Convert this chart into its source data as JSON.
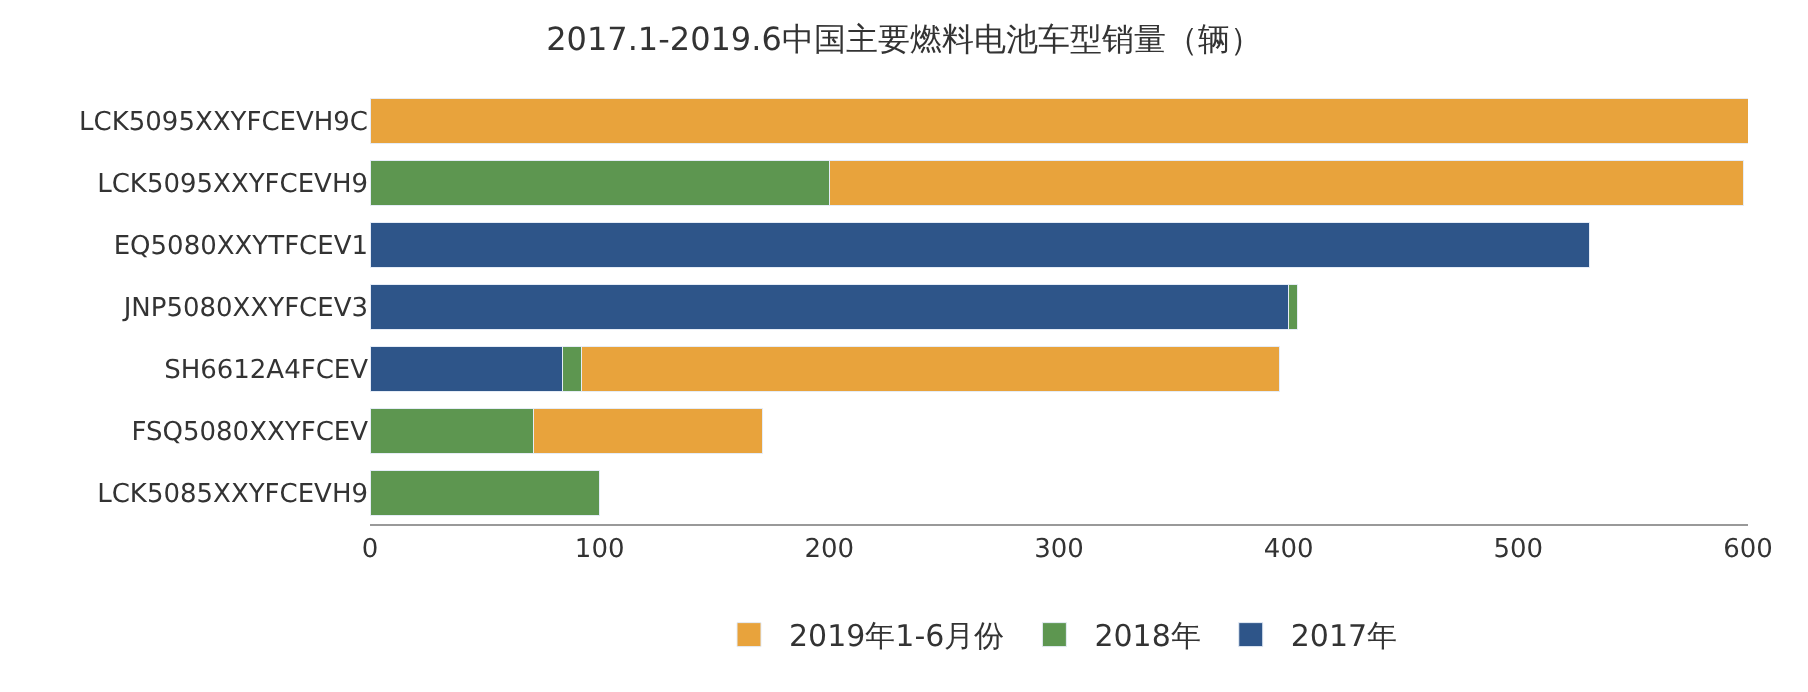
{
  "chart_data": {
    "type": "bar",
    "orientation": "horizontal",
    "stacked": true,
    "title": "2017.1-2019.6中国主要燃料电池车型销量（辆）",
    "categories": [
      "LCK5095XXYFCEVH9C",
      "LCK5095XXYFCEVH9",
      "EQ5080XXYTFCEV1",
      "JNP5080XXYFCEV3",
      "SH6612A4FCEV",
      "FSQ5080XXYFCEV",
      "LCK5085XXYFCEVH9"
    ],
    "series": [
      {
        "name": "2017年",
        "color": "#2e5589",
        "values": [
          null,
          null,
          531,
          400,
          84,
          null,
          null
        ]
      },
      {
        "name": "2018年",
        "color": "#5d9650",
        "values": [
          null,
          200,
          null,
          4,
          8,
          71,
          100
        ]
      },
      {
        "name": "2019年1-6月份",
        "color": "#e8a33c",
        "values": [
          600,
          398,
          null,
          null,
          304,
          100,
          null
        ]
      }
    ],
    "xlim": [
      0,
      600
    ],
    "xticks": [
      0,
      100,
      200,
      300,
      400,
      500,
      600
    ],
    "grid": false,
    "legend": "bottom"
  }
}
